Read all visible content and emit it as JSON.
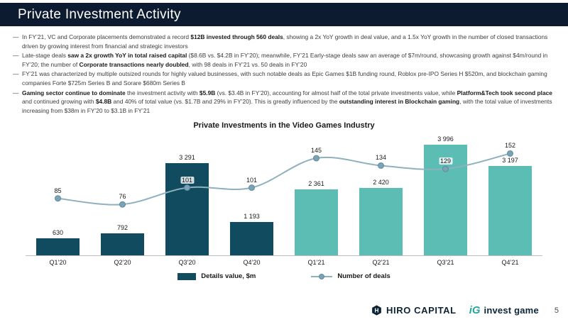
{
  "header": {
    "title": "Private Investment Activity"
  },
  "bullet_marker": "—",
  "bullets": [
    {
      "segments": [
        {
          "t": "In FY’21, VC and Corporate placements demonstrated a record ",
          "b": false
        },
        {
          "t": "$12B invested through 560 deals",
          "b": true
        },
        {
          "t": ", showing a 2x YoY growth in deal value, and a 1.5x YoY growth in the number of closed transactions driven by growing interest from financial and strategic investors",
          "b": false
        }
      ]
    },
    {
      "segments": [
        {
          "t": "Late-stage deals ",
          "b": false
        },
        {
          "t": "saw a 2x growth YoY in total raised capital",
          "b": true
        },
        {
          "t": " ($8.6B vs. $4.2B in FY’20); meanwhile, FY’21 Early-stage deals saw an average of $7m/round, showcasing growth against $4m/round in FY’20; the number of ",
          "b": false
        },
        {
          "t": "Corporate transactions nearly doubled",
          "b": true
        },
        {
          "t": ", with 98 deals in FY’21 vs. 50 deals in FY’20",
          "b": false
        }
      ]
    },
    {
      "segments": [
        {
          "t": "FY’21 was characterized by multiple outsized rounds for highly valued businesses, with such notable deals as Epic Games $1B funding round, Roblox pre-IPO Series H $520m, and blockchain gaming companies Forte $725m Series B and Sorare $680m Series B",
          "b": false
        }
      ]
    },
    {
      "segments": [
        {
          "t": "Gaming sector continue to dominate",
          "b": true
        },
        {
          "t": " the investment activity with ",
          "b": false
        },
        {
          "t": "$5.9B",
          "b": true
        },
        {
          "t": " (vs. $3.4B in FY’20), accounting for almost half of the total private investments value, while ",
          "b": false
        },
        {
          "t": "Platform&Tech took second place",
          "b": true
        },
        {
          "t": " and continued growing with ",
          "b": false
        },
        {
          "t": "$4.8B",
          "b": true
        },
        {
          "t": " and 40% of total value (vs. $1.7B and 29% in FY’20). This is greatly influenced by the ",
          "b": false
        },
        {
          "t": "outstanding interest in Blockchain gaming",
          "b": true
        },
        {
          "t": ", with the total value of investments increasing from $38m in FY’20 to $3.1B in FY’21",
          "b": false
        }
      ]
    }
  ],
  "chart_data": {
    "type": "bar",
    "title": "Private Investments in the Video Games Industry",
    "categories": [
      "Q1’20",
      "Q2’20",
      "Q3’20",
      "Q4’20",
      "Q1’21",
      "Q2’21",
      "Q3’21",
      "Q4’21"
    ],
    "series": [
      {
        "name": "Details value, $m",
        "type": "bar",
        "values": [
          630,
          792,
          3291,
          1193,
          2361,
          2420,
          3996,
          3197
        ],
        "labels": [
          "630",
          "792",
          "3 291",
          "1 193",
          "2 361",
          "2 420",
          "3 996",
          "3 197"
        ]
      },
      {
        "name": "Number of deals",
        "type": "line",
        "values": [
          85,
          76,
          101,
          101,
          145,
          134,
          129,
          152
        ]
      }
    ],
    "ylim": [
      0,
      4300
    ],
    "grid": false,
    "legend_position": "bottom",
    "colors": {
      "bar_2020": "#114b5f",
      "bar_2021": "#5cbdb5",
      "line": "#8fb0bd",
      "marker": "#7ca3b4",
      "marker_border": "#5d8ba0"
    }
  },
  "footer": {
    "hiro_capital": "HIRO CAPITAL",
    "invest_game_mark": "iG",
    "invest_game": "invest game",
    "page_number": "5"
  }
}
